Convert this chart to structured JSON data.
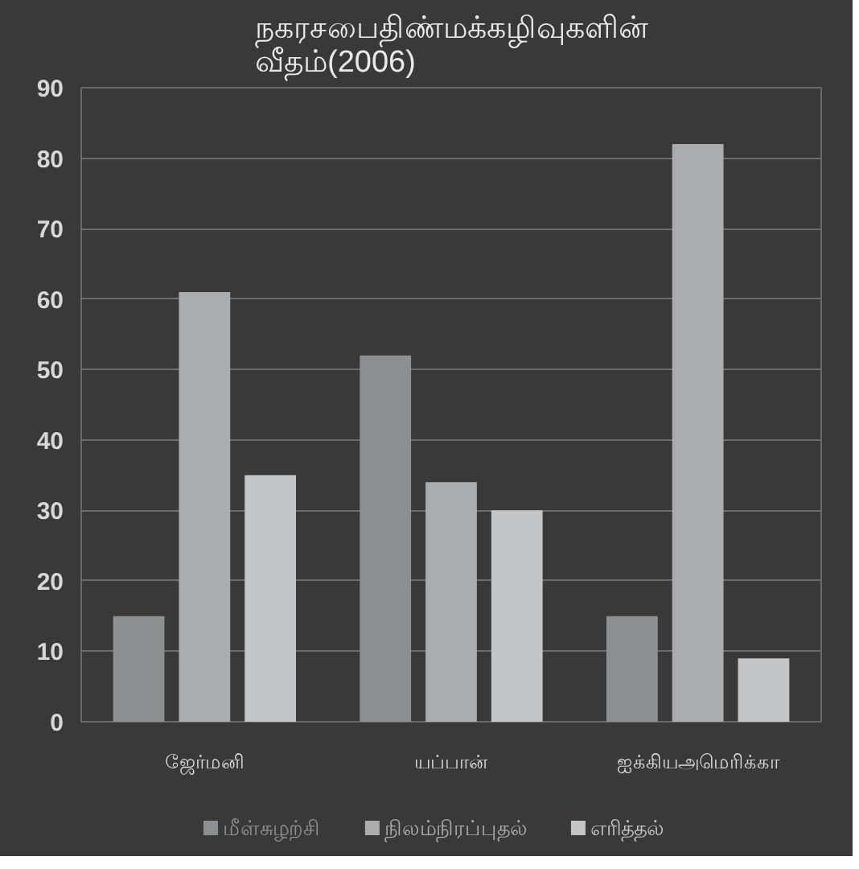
{
  "chart_data": {
    "type": "bar",
    "title": "நகரசபைதிண்மக்கழிவுகளின்\nவீதம்(2006)",
    "categories": [
      "ஜேர்மனி",
      "யப்பான்",
      "ஐக்கியஅமெரிக்கா"
    ],
    "series": [
      {
        "name": "மீள்சுழற்சி",
        "color": "#8c9092",
        "values": [
          15,
          52,
          15
        ]
      },
      {
        "name": "நிலம்நிரப்புதல்",
        "color": "#a9adaf",
        "values": [
          61,
          34,
          82
        ]
      },
      {
        "name": "எரித்தல்",
        "color": "#c3c6c8",
        "values": [
          35,
          30,
          9
        ]
      }
    ],
    "ylim": [
      0,
      90
    ],
    "yticks": [
      0,
      10,
      20,
      30,
      40,
      50,
      60,
      70,
      80,
      90
    ],
    "grid": "y",
    "legend": "bottom"
  }
}
